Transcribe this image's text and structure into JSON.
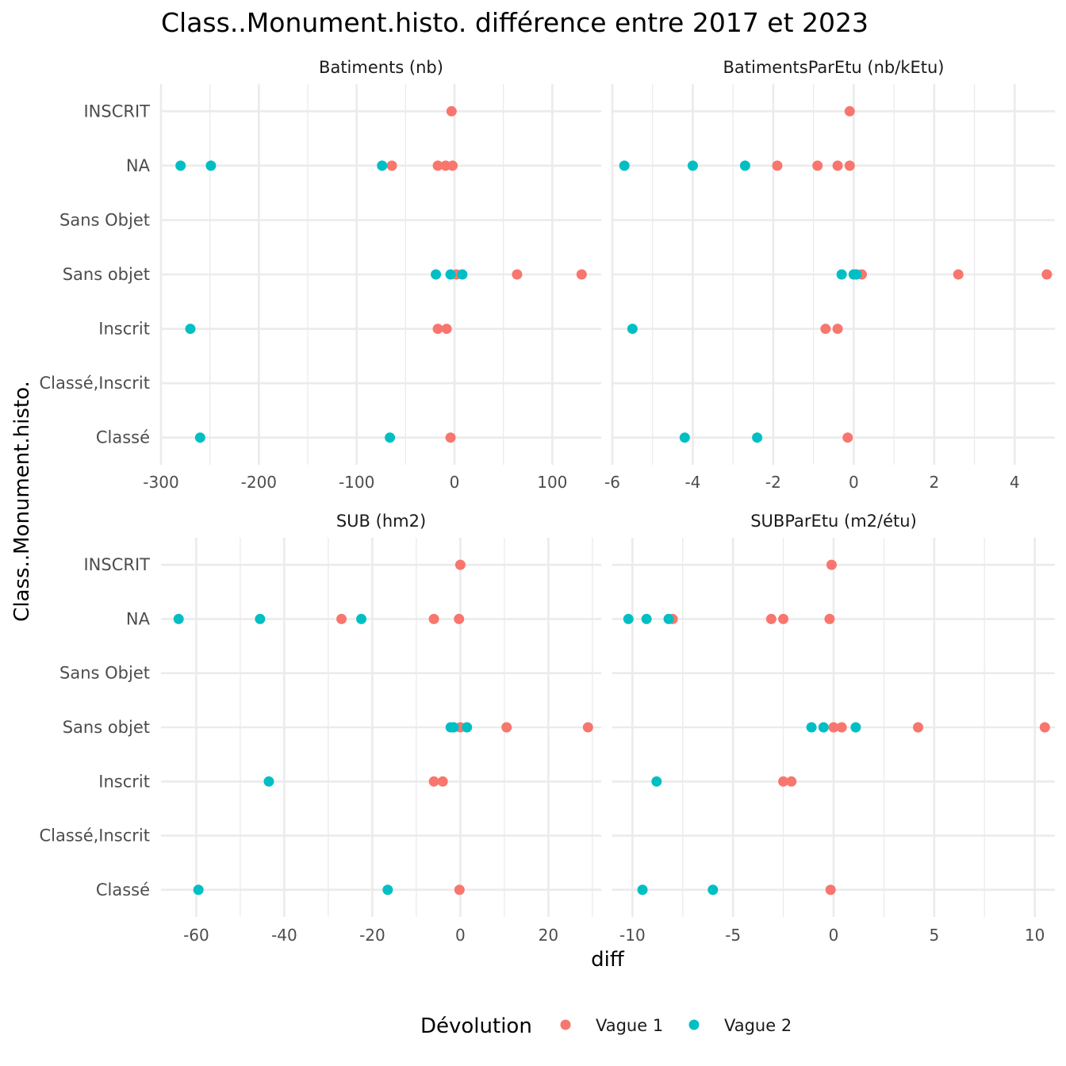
{
  "title": "Class..Monument.histo. différence entre 2017 et 2023",
  "xlabel": "diff",
  "ylabel": "Class..Monument.histo.",
  "legend": {
    "title": "Dévolution",
    "position": "bottom",
    "entries": [
      {
        "label": "Vague 1",
        "color": "#F8766D"
      },
      {
        "label": "Vague 2",
        "color": "#00BFC4"
      }
    ]
  },
  "chart_data": {
    "type": "scatter",
    "categories": [
      "INSCRIT",
      "NA",
      "Sans Objet",
      "Sans objet",
      "Inscrit",
      "Classé,Inscrit",
      "Classé"
    ],
    "grid": true,
    "panels": [
      {
        "name": "Batiments (nb)",
        "xlim": [
          -300,
          150
        ],
        "xticks": [
          -300,
          -200,
          -100,
          0,
          100
        ],
        "xtick_labels": [
          "-300",
          "-200",
          "-100",
          "0",
          "100"
        ],
        "series": [
          {
            "name": "Vague 1",
            "points": [
              {
                "x": -3,
                "y": "INSCRIT"
              },
              {
                "x": -64,
                "y": "NA"
              },
              {
                "x": -17,
                "y": "NA"
              },
              {
                "x": -9,
                "y": "NA"
              },
              {
                "x": -2,
                "y": "NA"
              },
              {
                "x": 2,
                "y": "Sans objet"
              },
              {
                "x": 64,
                "y": "Sans objet"
              },
              {
                "x": 130,
                "y": "Sans objet"
              },
              {
                "x": -17,
                "y": "Inscrit"
              },
              {
                "x": -8,
                "y": "Inscrit"
              },
              {
                "x": -4,
                "y": "Classé"
              }
            ]
          },
          {
            "name": "Vague 2",
            "points": [
              {
                "x": -280,
                "y": "NA"
              },
              {
                "x": -249,
                "y": "NA"
              },
              {
                "x": -74,
                "y": "NA"
              },
              {
                "x": -19,
                "y": "Sans objet"
              },
              {
                "x": -4,
                "y": "Sans objet"
              },
              {
                "x": 8,
                "y": "Sans objet"
              },
              {
                "x": -270,
                "y": "Inscrit"
              },
              {
                "x": -260,
                "y": "Classé"
              },
              {
                "x": -66,
                "y": "Classé"
              }
            ]
          }
        ]
      },
      {
        "name": "BatimentsParEtu (nb/kEtu)",
        "xlim": [
          -6,
          5
        ],
        "xticks": [
          -6,
          -4,
          -2,
          0,
          2,
          4
        ],
        "xtick_labels": [
          "-6",
          "-4",
          "-2",
          "0",
          "2",
          "4"
        ],
        "series": [
          {
            "name": "Vague 1",
            "points": [
              {
                "x": -0.1,
                "y": "INSCRIT"
              },
              {
                "x": -1.9,
                "y": "NA"
              },
              {
                "x": -0.9,
                "y": "NA"
              },
              {
                "x": -0.4,
                "y": "NA"
              },
              {
                "x": -0.1,
                "y": "NA"
              },
              {
                "x": 0.2,
                "y": "Sans objet"
              },
              {
                "x": 2.6,
                "y": "Sans objet"
              },
              {
                "x": 4.8,
                "y": "Sans objet"
              },
              {
                "x": -0.7,
                "y": "Inscrit"
              },
              {
                "x": -0.4,
                "y": "Inscrit"
              },
              {
                "x": -0.15,
                "y": "Classé"
              }
            ]
          },
          {
            "name": "Vague 2",
            "points": [
              {
                "x": -5.7,
                "y": "NA"
              },
              {
                "x": -4.0,
                "y": "NA"
              },
              {
                "x": -2.7,
                "y": "NA"
              },
              {
                "x": -0.3,
                "y": "Sans objet"
              },
              {
                "x": 0.0,
                "y": "Sans objet"
              },
              {
                "x": 0.07,
                "y": "Sans objet"
              },
              {
                "x": -5.5,
                "y": "Inscrit"
              },
              {
                "x": -4.2,
                "y": "Classé"
              },
              {
                "x": -2.4,
                "y": "Classé"
              }
            ]
          }
        ]
      },
      {
        "name": "SUB (hm2)",
        "xlim": [
          -68,
          32
        ],
        "xticks": [
          -60,
          -40,
          -20,
          0,
          20
        ],
        "xtick_labels": [
          "-60",
          "-40",
          "-20",
          "0",
          "20"
        ],
        "series": [
          {
            "name": "Vague 1",
            "points": [
              {
                "x": 0,
                "y": "INSCRIT"
              },
              {
                "x": -27,
                "y": "NA"
              },
              {
                "x": -6,
                "y": "NA"
              },
              {
                "x": -0.3,
                "y": "NA"
              },
              {
                "x": 0,
                "y": "Sans objet"
              },
              {
                "x": 10.5,
                "y": "Sans objet"
              },
              {
                "x": 29,
                "y": "Sans objet"
              },
              {
                "x": -6,
                "y": "Inscrit"
              },
              {
                "x": -4,
                "y": "Inscrit"
              },
              {
                "x": -0.2,
                "y": "Classé"
              }
            ]
          },
          {
            "name": "Vague 2",
            "points": [
              {
                "x": -64,
                "y": "NA"
              },
              {
                "x": -45.5,
                "y": "NA"
              },
              {
                "x": -22.5,
                "y": "NA"
              },
              {
                "x": -2.2,
                "y": "Sans objet"
              },
              {
                "x": -1.5,
                "y": "Sans objet"
              },
              {
                "x": 1.5,
                "y": "Sans objet"
              },
              {
                "x": -43.5,
                "y": "Inscrit"
              },
              {
                "x": -59.5,
                "y": "Classé"
              },
              {
                "x": -16.5,
                "y": "Classé"
              }
            ]
          }
        ]
      },
      {
        "name": "SUBParEtu (m2/étu)",
        "xlim": [
          -11,
          11
        ],
        "xticks": [
          -10,
          -5,
          0,
          5,
          10
        ],
        "xtick_labels": [
          "-10",
          "-5",
          "0",
          "5",
          "10"
        ],
        "series": [
          {
            "name": "Vague 1",
            "points": [
              {
                "x": -0.1,
                "y": "INSCRIT"
              },
              {
                "x": -8.0,
                "y": "NA"
              },
              {
                "x": -3.1,
                "y": "NA"
              },
              {
                "x": -2.5,
                "y": "NA"
              },
              {
                "x": -0.2,
                "y": "NA"
              },
              {
                "x": 0.0,
                "y": "Sans objet"
              },
              {
                "x": 0.4,
                "y": "Sans objet"
              },
              {
                "x": 4.2,
                "y": "Sans objet"
              },
              {
                "x": 10.5,
                "y": "Sans objet"
              },
              {
                "x": -2.5,
                "y": "Inscrit"
              },
              {
                "x": -2.1,
                "y": "Inscrit"
              },
              {
                "x": -0.15,
                "y": "Classé"
              }
            ]
          },
          {
            "name": "Vague 2",
            "points": [
              {
                "x": -10.2,
                "y": "NA"
              },
              {
                "x": -9.3,
                "y": "NA"
              },
              {
                "x": -8.2,
                "y": "NA"
              },
              {
                "x": -1.1,
                "y": "Sans objet"
              },
              {
                "x": -0.5,
                "y": "Sans objet"
              },
              {
                "x": 1.1,
                "y": "Sans objet"
              },
              {
                "x": -8.8,
                "y": "Inscrit"
              },
              {
                "x": -9.5,
                "y": "Classé"
              },
              {
                "x": -6.0,
                "y": "Classé"
              }
            ]
          }
        ]
      }
    ]
  }
}
